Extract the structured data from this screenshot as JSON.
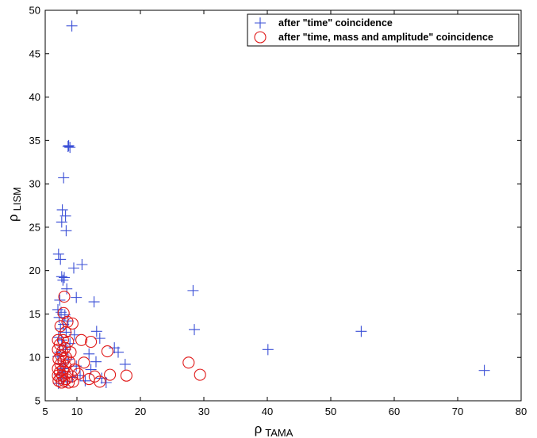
{
  "chart_data": {
    "type": "scatter",
    "xlabel": "ρ",
    "xlabel_sub": "TAMA",
    "ylabel": "ρ",
    "ylabel_sub": "LISM",
    "xlim": [
      5,
      80
    ],
    "ylim": [
      5,
      50
    ],
    "x_ticks": [
      5,
      10,
      20,
      30,
      40,
      50,
      60,
      70,
      80
    ],
    "y_ticks": [
      5,
      10,
      15,
      20,
      25,
      30,
      35,
      40,
      45,
      50
    ],
    "grid": false,
    "legend_position": "top-right",
    "series": [
      {
        "name": "after \"time\" coincidence",
        "marker": "plus",
        "color": "#3a4fd6",
        "points": [
          [
            9.2,
            48.2
          ],
          [
            8.6,
            34.3
          ],
          [
            8.9,
            34.2
          ],
          [
            8.7,
            34.4
          ],
          [
            7.9,
            30.7
          ],
          [
            7.7,
            27.0
          ],
          [
            8.2,
            26.3
          ],
          [
            7.6,
            25.6
          ],
          [
            8.3,
            24.6
          ],
          [
            7.1,
            21.9
          ],
          [
            7.4,
            21.3
          ],
          [
            10.8,
            20.7
          ],
          [
            9.5,
            20.3
          ],
          [
            7.6,
            19.3
          ],
          [
            8.0,
            19.2
          ],
          [
            7.8,
            18.9
          ],
          [
            8.4,
            17.9
          ],
          [
            9.9,
            16.9
          ],
          [
            12.7,
            16.4
          ],
          [
            7.3,
            16.6
          ],
          [
            7.0,
            15.5
          ],
          [
            7.5,
            15.2
          ],
          [
            8.1,
            14.9
          ],
          [
            7.2,
            14.6
          ],
          [
            8.6,
            14.2
          ],
          [
            7.9,
            13.8
          ],
          [
            7.4,
            13.3
          ],
          [
            13.1,
            13.0
          ],
          [
            8.3,
            12.9
          ],
          [
            9.6,
            12.6
          ],
          [
            7.1,
            12.3
          ],
          [
            7.6,
            12.0
          ],
          [
            13.6,
            12.2
          ],
          [
            8.9,
            11.6
          ],
          [
            7.8,
            11.3
          ],
          [
            15.9,
            11.1
          ],
          [
            8.2,
            10.9
          ],
          [
            7.3,
            10.6
          ],
          [
            16.5,
            10.6
          ],
          [
            11.9,
            10.4
          ],
          [
            7.0,
            10.1
          ],
          [
            8.6,
            9.8
          ],
          [
            13.0,
            9.5
          ],
          [
            7.5,
            9.3
          ],
          [
            17.6,
            9.2
          ],
          [
            9.9,
            9.0
          ],
          [
            7.9,
            8.7
          ],
          [
            12.2,
            8.6
          ],
          [
            8.1,
            8.3
          ],
          [
            7.2,
            8.0
          ],
          [
            10.5,
            7.9
          ],
          [
            13.9,
            7.6
          ],
          [
            7.6,
            7.5
          ],
          [
            11.3,
            7.3
          ],
          [
            8.4,
            7.2
          ],
          [
            14.6,
            7.1
          ],
          [
            9.3,
            7.7
          ],
          [
            7.1,
            7.0
          ],
          [
            28.3,
            17.7
          ],
          [
            28.5,
            13.2
          ],
          [
            40.1,
            10.9
          ],
          [
            54.8,
            13.0
          ],
          [
            74.2,
            8.5
          ]
        ]
      },
      {
        "name": "after \"time, mass and amplitude\" coincidence",
        "marker": "circle",
        "color": "#e01a1a",
        "points": [
          [
            8.0,
            17.0
          ],
          [
            7.9,
            15.1
          ],
          [
            8.5,
            14.1
          ],
          [
            9.3,
            13.9
          ],
          [
            7.4,
            13.6
          ],
          [
            8.2,
            12.9
          ],
          [
            7.0,
            12.0
          ],
          [
            7.8,
            12.0
          ],
          [
            8.6,
            11.8
          ],
          [
            10.7,
            12.0
          ],
          [
            12.2,
            11.8
          ],
          [
            7.3,
            11.5
          ],
          [
            8.1,
            11.1
          ],
          [
            7.0,
            10.9
          ],
          [
            7.7,
            10.7
          ],
          [
            9.0,
            10.6
          ],
          [
            14.8,
            10.7
          ],
          [
            7.5,
            10.2
          ],
          [
            8.3,
            10.0
          ],
          [
            7.1,
            9.8
          ],
          [
            7.9,
            9.6
          ],
          [
            8.8,
            9.5
          ],
          [
            11.1,
            9.4
          ],
          [
            27.6,
            9.4
          ],
          [
            7.4,
            9.2
          ],
          [
            8.2,
            9.0
          ],
          [
            7.0,
            8.7
          ],
          [
            7.8,
            8.6
          ],
          [
            9.6,
            8.6
          ],
          [
            7.3,
            8.3
          ],
          [
            8.5,
            8.2
          ],
          [
            10.2,
            8.1
          ],
          [
            15.2,
            8.0
          ],
          [
            17.8,
            7.9
          ],
          [
            29.4,
            8.0
          ],
          [
            7.0,
            7.9
          ],
          [
            7.7,
            7.9
          ],
          [
            9.2,
            7.8
          ],
          [
            12.8,
            7.8
          ],
          [
            7.4,
            7.6
          ],
          [
            8.3,
            7.5
          ],
          [
            11.9,
            7.5
          ],
          [
            7.1,
            7.3
          ],
          [
            8.0,
            7.3
          ],
          [
            9.4,
            7.2
          ],
          [
            13.6,
            7.2
          ],
          [
            7.6,
            7.1
          ],
          [
            8.7,
            7.1
          ]
        ]
      }
    ]
  }
}
